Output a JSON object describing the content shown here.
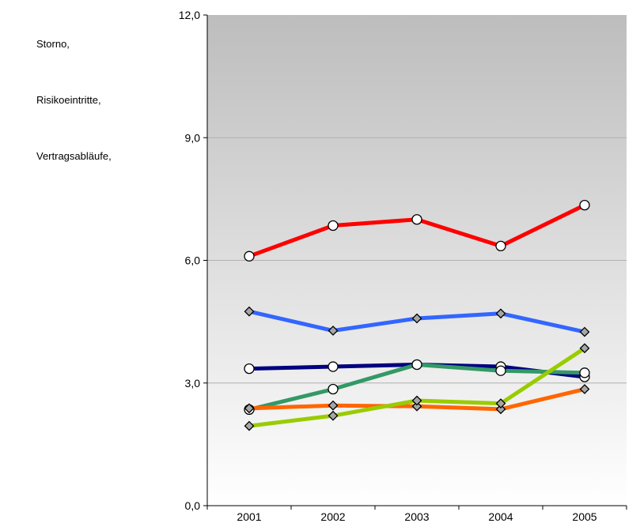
{
  "legend_text": [
    "Storno,",
    "Risikoeintritte,",
    "Vertragsabläufe,"
  ],
  "chart_data": {
    "type": "line",
    "x": [
      "2001",
      "2002",
      "2003",
      "2004",
      "2005"
    ],
    "ylim": [
      0,
      12
    ],
    "ytick_labels": [
      "0,0",
      "3,0",
      "6,0",
      "9,0",
      "12,0"
    ],
    "ytick_values": [
      0,
      3,
      6,
      9,
      12
    ],
    "grid": true,
    "series": [
      {
        "color": "#ff0000",
        "marker": "circle",
        "values": [
          6.1,
          6.85,
          7.0,
          6.35,
          7.35
        ]
      },
      {
        "color": "#3366ff",
        "marker": "diamond",
        "values": [
          4.75,
          4.28,
          4.58,
          4.7,
          4.25
        ]
      },
      {
        "color": "#000080",
        "marker": "circle",
        "values": [
          3.35,
          3.4,
          3.45,
          3.4,
          3.15
        ]
      },
      {
        "color": "#339966",
        "marker": "circle",
        "values": [
          2.35,
          2.85,
          3.45,
          3.3,
          3.25
        ]
      },
      {
        "color": "#ff6600",
        "marker": "diamond",
        "values": [
          2.38,
          2.45,
          2.43,
          2.36,
          2.85
        ]
      },
      {
        "color": "#99cc00",
        "marker": "diamond",
        "values": [
          1.95,
          2.2,
          2.57,
          2.5,
          3.85
        ]
      }
    ]
  }
}
